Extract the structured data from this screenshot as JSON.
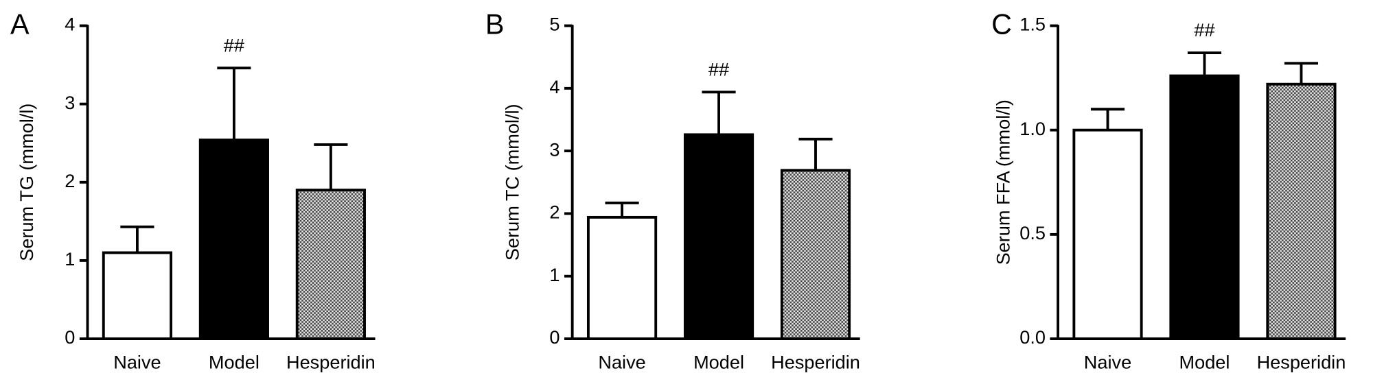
{
  "chart_data": [
    {
      "type": "bar",
      "panel": "A",
      "ylabel": "Serum TG (mmol/l)",
      "categories": [
        "Naive",
        "Model",
        "Hesperidin"
      ],
      "values": [
        1.1,
        2.54,
        1.9
      ],
      "errors": [
        0.33,
        0.92,
        0.58
      ],
      "colors": [
        "#ffffff",
        "#000000",
        "#999999"
      ],
      "patterns": [
        null,
        null,
        "crosshatch"
      ],
      "annotations": [
        null,
        "##",
        null
      ],
      "ylim": [
        0,
        4
      ],
      "yticks": [
        0,
        1,
        2,
        3,
        4
      ]
    },
    {
      "type": "bar",
      "panel": "B",
      "ylabel": "Serum TC (mmol/l)",
      "categories": [
        "Naive",
        "Model",
        "Hesperidin"
      ],
      "values": [
        1.94,
        3.26,
        2.69
      ],
      "errors": [
        0.23,
        0.68,
        0.5
      ],
      "colors": [
        "#ffffff",
        "#000000",
        "#999999"
      ],
      "patterns": [
        null,
        null,
        "crosshatch"
      ],
      "annotations": [
        null,
        "##",
        null
      ],
      "ylim": [
        0,
        5
      ],
      "yticks": [
        0,
        1,
        2,
        3,
        4,
        5
      ]
    },
    {
      "type": "bar",
      "panel": "C",
      "ylabel": "Serum FFA (mmol/l)",
      "categories": [
        "Naive",
        "Model",
        "Hesperidin"
      ],
      "values": [
        1.0,
        1.26,
        1.22
      ],
      "errors": [
        0.1,
        0.11,
        0.1
      ],
      "colors": [
        "#ffffff",
        "#000000",
        "#999999"
      ],
      "patterns": [
        null,
        null,
        "crosshatch"
      ],
      "annotations": [
        null,
        "##",
        null
      ],
      "ylim": [
        0,
        1.5
      ],
      "yticks": [
        {
          "value": 0,
          "label": "0.0"
        },
        0.5,
        {
          "value": 1,
          "label": "1.0"
        },
        1.5
      ]
    }
  ]
}
